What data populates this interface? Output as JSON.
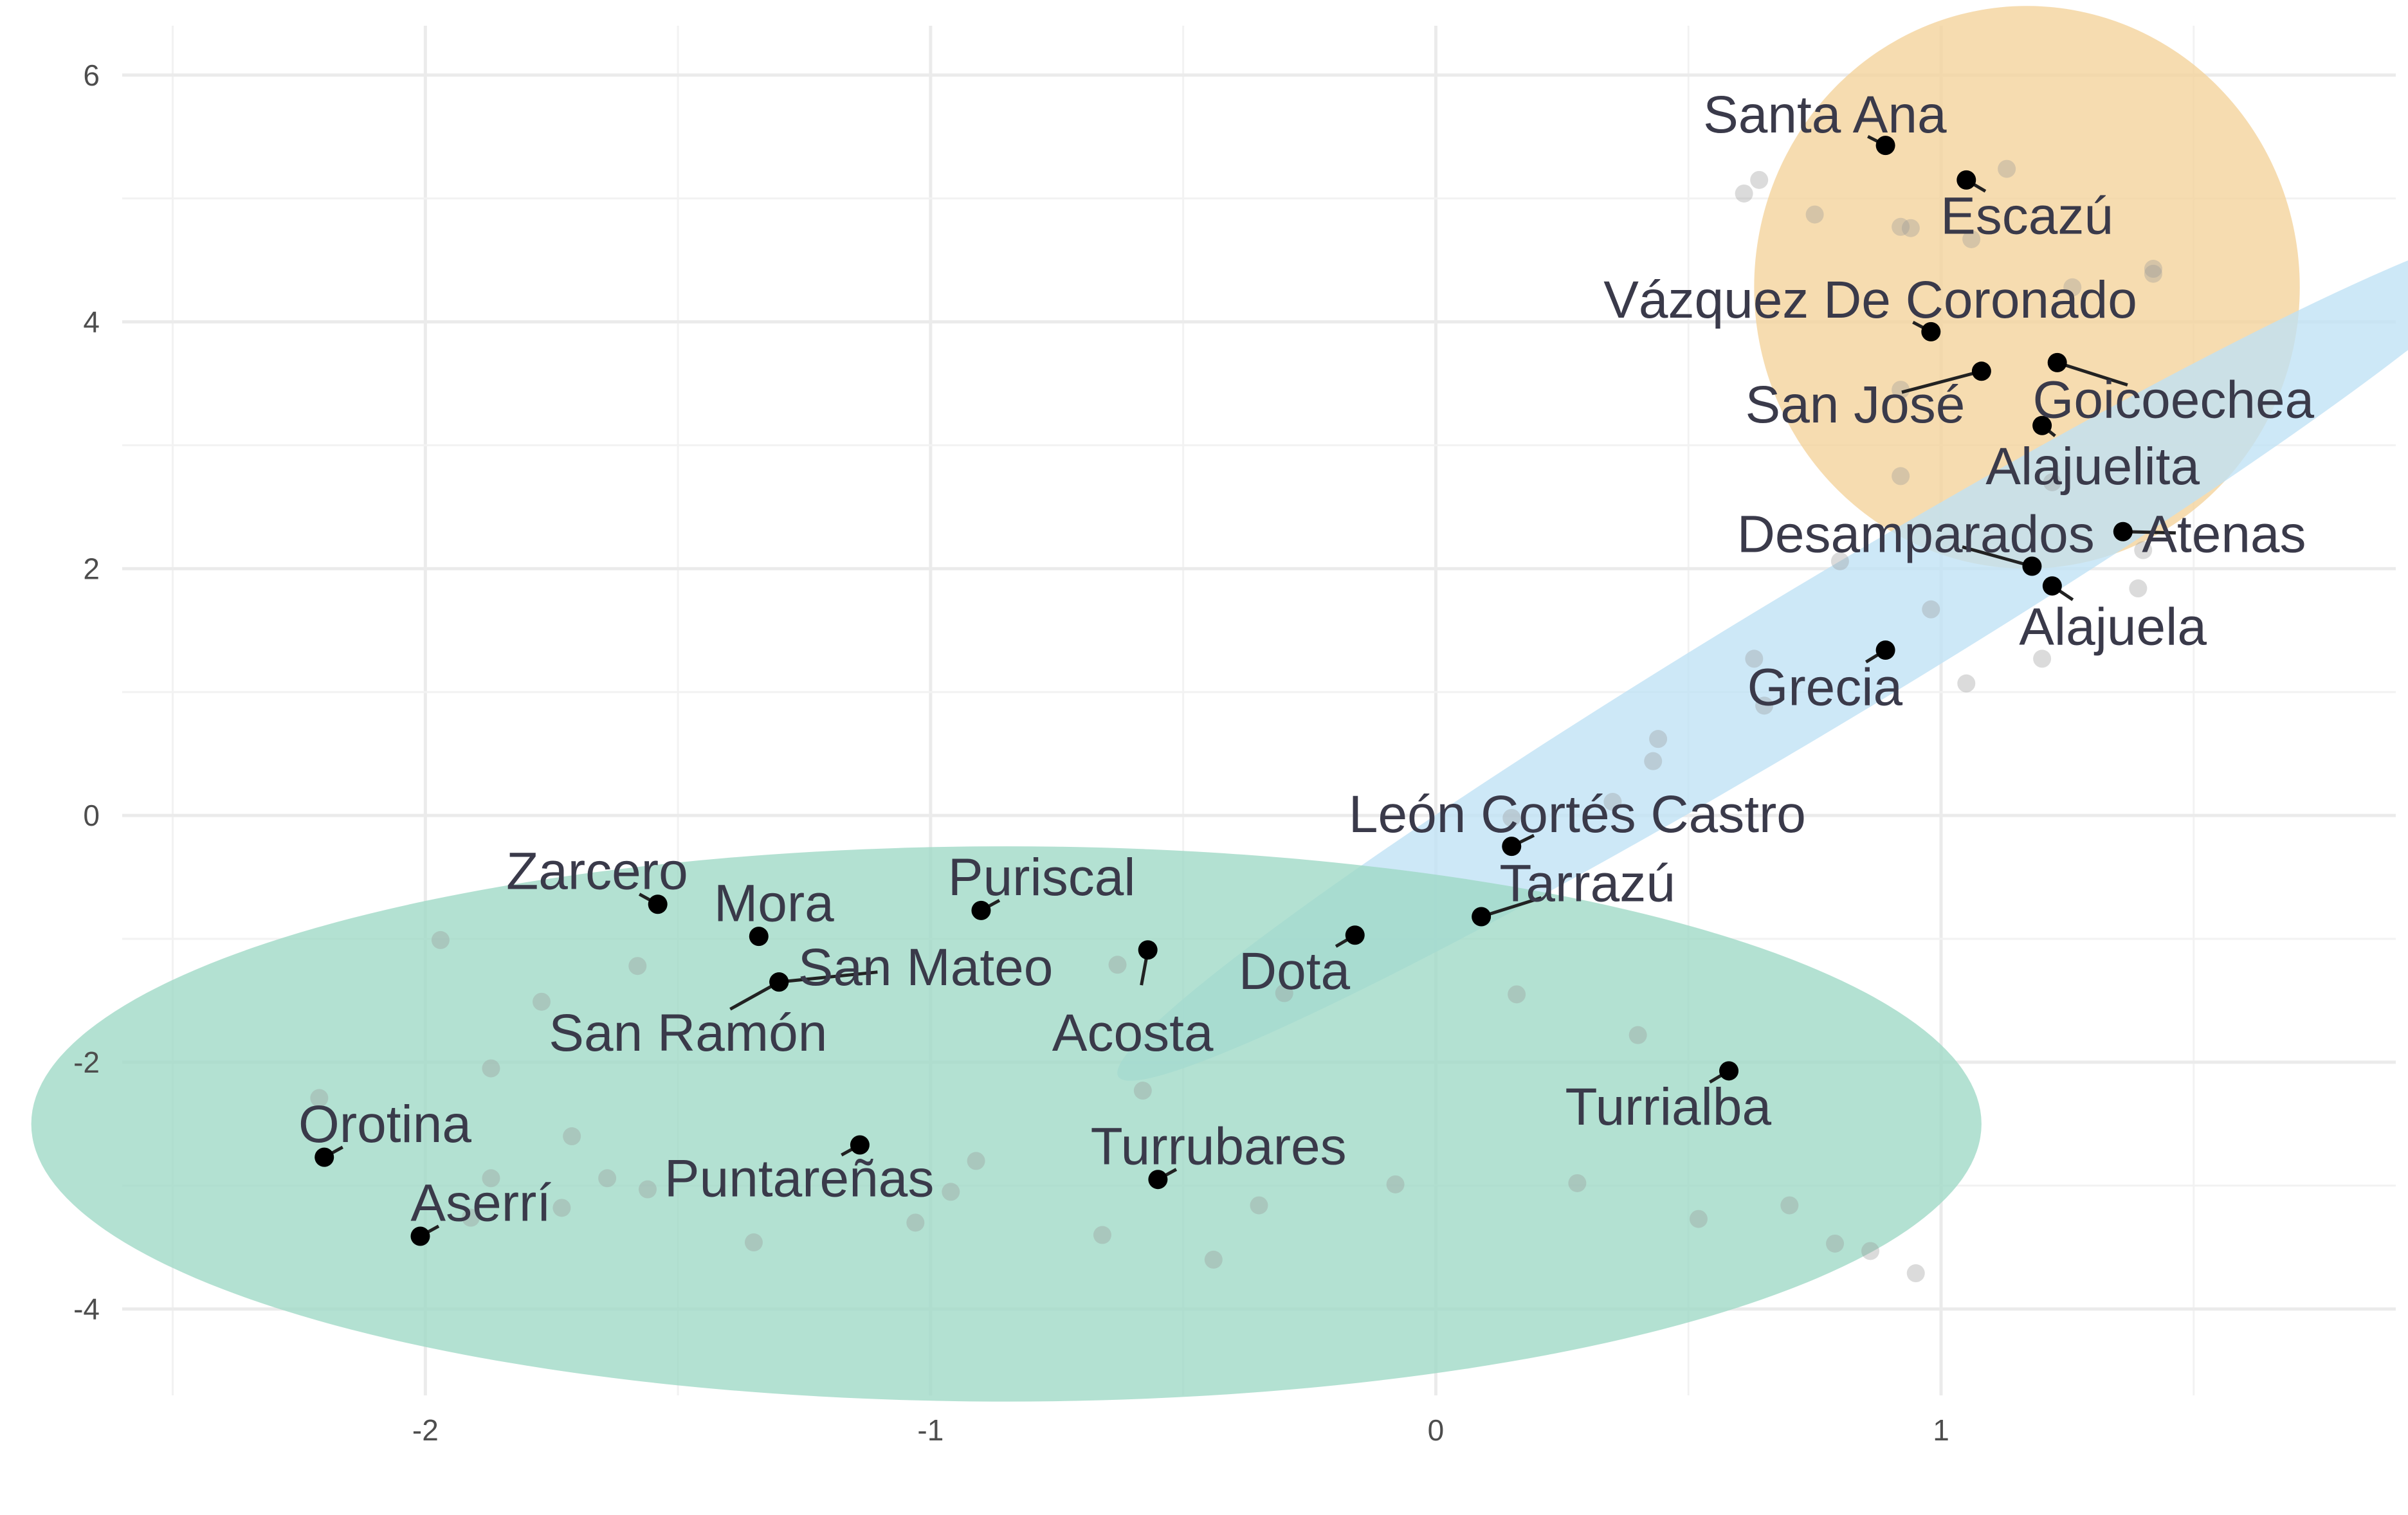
{
  "chart_data": {
    "type": "scatter",
    "title": "",
    "xlabel": "",
    "ylabel": "",
    "xlim": [
      -2.6,
      1.9
    ],
    "ylim": [
      -4.7,
      6.4
    ],
    "x_ticks": [
      -2,
      -1,
      0,
      1
    ],
    "y_ticks": [
      -4,
      -2,
      0,
      2,
      4,
      6
    ],
    "grid": true,
    "legend": "none",
    "colors": {
      "cluster_orange": "#f4d29a",
      "cluster_blue": "#bfe2f5",
      "cluster_green": "#9dd9c5",
      "labeled_point": "#000000",
      "background_point": "#999999",
      "label_text": "#3a3a4a"
    },
    "clusters": [
      {
        "color": "cluster_orange",
        "center": [
          1.17,
          4.28
        ],
        "radius_x": 0.54,
        "radius_y": 2.28,
        "angle_deg": 0
      },
      {
        "color": "cluster_blue",
        "center": [
          0.76,
          1.3
        ],
        "radius_x": 1.62,
        "radius_y": 0.57,
        "angle_deg": -31
      },
      {
        "color": "cluster_green",
        "center": [
          -0.85,
          -2.5
        ],
        "radius_x": 1.93,
        "radius_y": 2.25,
        "angle_deg": 0
      }
    ],
    "labeled_points": [
      {
        "name": "Santa Ana",
        "x": 0.89,
        "y": 5.43,
        "lx": 0.77,
        "ly": 5.68
      },
      {
        "name": "Escazú",
        "x": 1.05,
        "y": 5.15,
        "lx": 1.17,
        "ly": 4.86
      },
      {
        "name": "Vázquez De Coronado",
        "x": 0.98,
        "y": 3.92,
        "lx": 0.86,
        "ly": 4.18
      },
      {
        "name": "San José",
        "x": 1.08,
        "y": 3.6,
        "lx": 0.83,
        "ly": 3.33
      },
      {
        "name": "Goicoechea",
        "x": 1.23,
        "y": 3.67,
        "lx": 1.46,
        "ly": 3.37
      },
      {
        "name": "Alajuelita",
        "x": 1.2,
        "y": 3.16,
        "lx": 1.3,
        "ly": 2.83
      },
      {
        "name": "Desamparados",
        "x": 1.18,
        "y": 2.02,
        "lx": 0.95,
        "ly": 2.28
      },
      {
        "name": "Atenas",
        "x": 1.36,
        "y": 2.3,
        "lx": 1.56,
        "ly": 2.28
      },
      {
        "name": "Alajuela",
        "x": 1.22,
        "y": 1.86,
        "lx": 1.34,
        "ly": 1.53
      },
      {
        "name": "Grecia",
        "x": 0.89,
        "y": 1.34,
        "lx": 0.77,
        "ly": 1.04
      },
      {
        "name": "León Cortés Castro",
        "x": 0.15,
        "y": -0.25,
        "lx": 0.28,
        "ly": 0.01
      },
      {
        "name": "Tarrazú",
        "x": 0.09,
        "y": -0.82,
        "lx": 0.3,
        "ly": -0.55
      },
      {
        "name": "Zarcero",
        "x": -1.54,
        "y": -0.72,
        "lx": -1.66,
        "ly": -0.45
      },
      {
        "name": "Mora",
        "x": -1.34,
        "y": -0.98,
        "lx": -1.31,
        "ly": -0.71
      },
      {
        "name": "Puriscal",
        "x": -0.9,
        "y": -0.77,
        "lx": -0.78,
        "ly": -0.5
      },
      {
        "name": "San Mateo",
        "x": -1.3,
        "y": -1.35,
        "lx": -1.01,
        "ly": -1.23
      },
      {
        "name": "Dota",
        "x": -0.16,
        "y": -0.97,
        "lx": -0.28,
        "ly": -1.26
      },
      {
        "name": "San Ramón",
        "x": -1.3,
        "y": -1.35,
        "lx": -1.48,
        "ly": -1.76
      },
      {
        "name": "Acosta",
        "x": -0.57,
        "y": -1.09,
        "lx": -0.6,
        "ly": -1.76
      },
      {
        "name": "Turrialba",
        "x": 0.58,
        "y": -2.07,
        "lx": 0.46,
        "ly": -2.36
      },
      {
        "name": "Orotina",
        "x": -2.2,
        "y": -2.77,
        "lx": -2.08,
        "ly": -2.5
      },
      {
        "name": "Turrubares",
        "x": -0.55,
        "y": -2.95,
        "lx": -0.43,
        "ly": -2.68
      },
      {
        "name": "Puntareñas",
        "x": -1.14,
        "y": -2.67,
        "lx": -1.26,
        "ly": -2.94
      },
      {
        "name": "Aserrí",
        "x": -2.01,
        "y": -3.41,
        "lx": -1.89,
        "ly": -3.14
      }
    ],
    "background_points": [
      [
        0.61,
        5.04
      ],
      [
        0.64,
        5.15
      ],
      [
        0.75,
        4.87
      ],
      [
        0.92,
        4.77
      ],
      [
        0.94,
        4.76
      ],
      [
        1.06,
        4.67
      ],
      [
        1.13,
        5.24
      ],
      [
        1.26,
        4.28
      ],
      [
        1.42,
        4.43
      ],
      [
        1.42,
        4.39
      ],
      [
        0.92,
        3.45
      ],
      [
        0.92,
        2.75
      ],
      [
        0.8,
        2.06
      ],
      [
        0.98,
        1.67
      ],
      [
        1.22,
        2.7
      ],
      [
        1.4,
        2.15
      ],
      [
        1.39,
        1.84
      ],
      [
        0.63,
        1.27
      ],
      [
        0.65,
        0.89
      ],
      [
        1.05,
        1.07
      ],
      [
        1.2,
        1.27
      ],
      [
        0.44,
        0.62
      ],
      [
        0.43,
        0.44
      ],
      [
        0.35,
        0.11
      ],
      [
        0.15,
        -0.02
      ],
      [
        -1.97,
        -1.01
      ],
      [
        -1.58,
        -1.22
      ],
      [
        -1.77,
        -1.51
      ],
      [
        -1.87,
        -2.05
      ],
      [
        -2.21,
        -2.29
      ],
      [
        -1.71,
        -2.6
      ],
      [
        -1.64,
        -2.94
      ],
      [
        -1.56,
        -3.03
      ],
      [
        -1.73,
        -3.18
      ],
      [
        -1.87,
        -2.94
      ],
      [
        -1.91,
        -3.26
      ],
      [
        -1.35,
        -3.46
      ],
      [
        -1.03,
        -3.3
      ],
      [
        -0.96,
        -3.05
      ],
      [
        -0.91,
        -2.8
      ],
      [
        -0.58,
        -2.23
      ],
      [
        -0.63,
        -1.21
      ],
      [
        -0.3,
        -1.44
      ],
      [
        -0.66,
        -3.4
      ],
      [
        -0.44,
        -3.6
      ],
      [
        -0.35,
        -3.16
      ],
      [
        -0.08,
        -2.99
      ],
      [
        0.16,
        -1.45
      ],
      [
        0.4,
        -1.78
      ],
      [
        0.28,
        -2.98
      ],
      [
        0.52,
        -3.27
      ],
      [
        0.7,
        -3.16
      ],
      [
        0.79,
        -3.47
      ],
      [
        0.86,
        -3.53
      ],
      [
        0.95,
        -3.71
      ]
    ]
  }
}
